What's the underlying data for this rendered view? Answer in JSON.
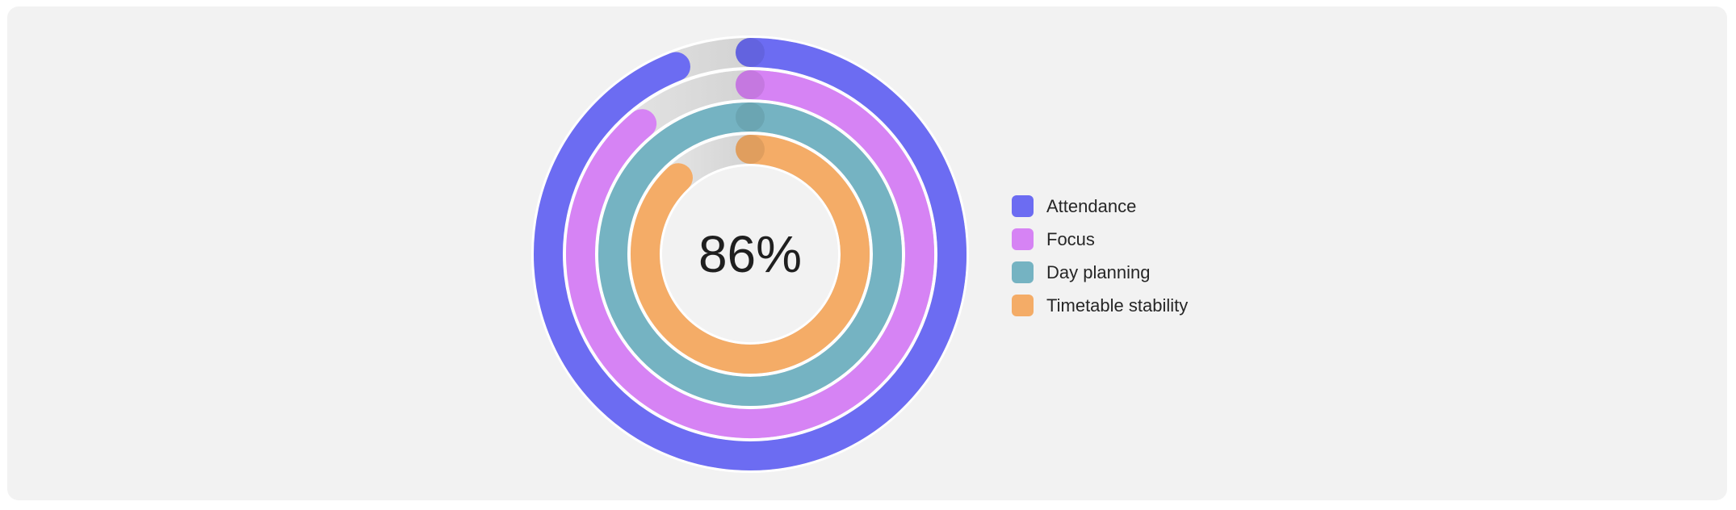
{
  "chart_data": {
    "type": "radial-bar",
    "center_label": "86%",
    "series": [
      {
        "name": "Attendance",
        "value": 94,
        "color": "#6c6cf2"
      },
      {
        "name": "Focus",
        "value": 89,
        "color": "#d683f4"
      },
      {
        "name": "Day planning",
        "value": 100,
        "color": "#75b3c2"
      },
      {
        "name": "Timetable stability",
        "value": 88,
        "color": "#f4ac67"
      }
    ],
    "max": 100,
    "track_color": "#cfcfcf",
    "legend_position": "right"
  }
}
